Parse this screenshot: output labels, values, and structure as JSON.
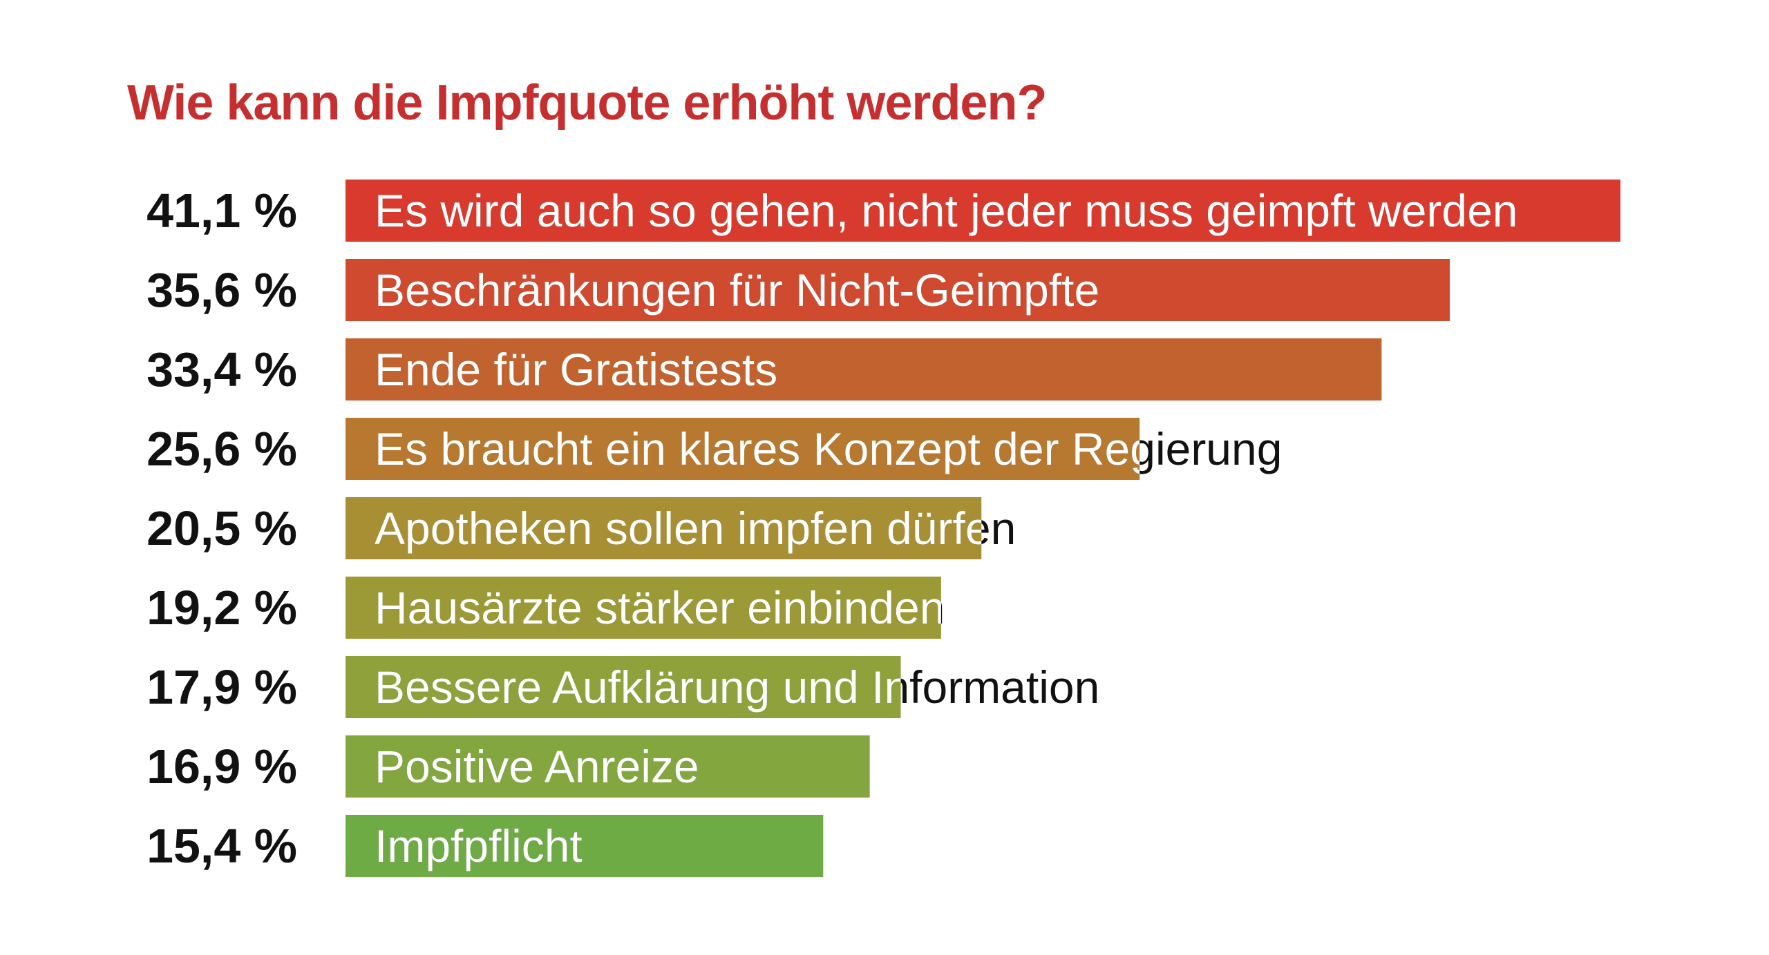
{
  "chart_data": {
    "type": "bar",
    "orientation": "horizontal",
    "title": "Wie kann die Impfquote erhöht werden?",
    "categories": [
      "Es wird auch so gehen, nicht jeder muss geimpft werden",
      "Beschränkungen für Nicht-Geimpfte",
      "Ende für Gratistests",
      "Es braucht ein klares Konzept der Regierung",
      "Apotheken sollen impfen dürfen",
      "Hausärzte stärker einbinden",
      "Bessere Aufklärung und Information",
      "Positive Anreize",
      "Impfpflicht"
    ],
    "values": [
      41.1,
      35.6,
      33.4,
      25.6,
      20.5,
      19.2,
      17.9,
      16.9,
      15.4
    ],
    "value_labels": [
      "41,1 %",
      "35,6 %",
      "33,4 %",
      "25,6 %",
      "20,5 %",
      "19,2 %",
      "17,9 %",
      "16,9 %",
      "15,4 %"
    ],
    "colors": [
      "#d83a2e",
      "#cf4a2e",
      "#c2622f",
      "#b77930",
      "#a88f33",
      "#9c9a36",
      "#8fa13b",
      "#84a63f",
      "#6fab45"
    ],
    "label_color_inside": "#ffffff",
    "label_color_outside": "#111111",
    "xlim": [
      0,
      41.1
    ],
    "grid": false,
    "legend": "none"
  }
}
